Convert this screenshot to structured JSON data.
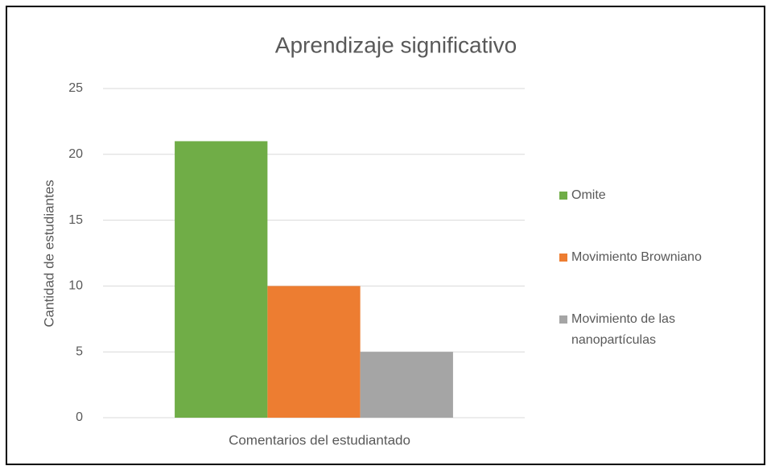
{
  "chart_data": {
    "type": "bar",
    "title": "Aprendizaje significativo",
    "y_label": "Cantidad de estudiantes",
    "categories": [
      "Comentarios del estudiantado"
    ],
    "series": [
      {
        "name": "Omite",
        "color": "#70ad47",
        "values": [
          21
        ]
      },
      {
        "name": "Movimiento Browniano",
        "color": "#ed7d31",
        "values": [
          10
        ]
      },
      {
        "name": "Movimiento de las nanopartículas",
        "color": "#a5a5a5",
        "values": [
          5
        ]
      }
    ],
    "ylim": [
      0,
      25
    ],
    "yticks": [
      0,
      5,
      10,
      15,
      20,
      25
    ],
    "grid": true,
    "legend": "right"
  }
}
